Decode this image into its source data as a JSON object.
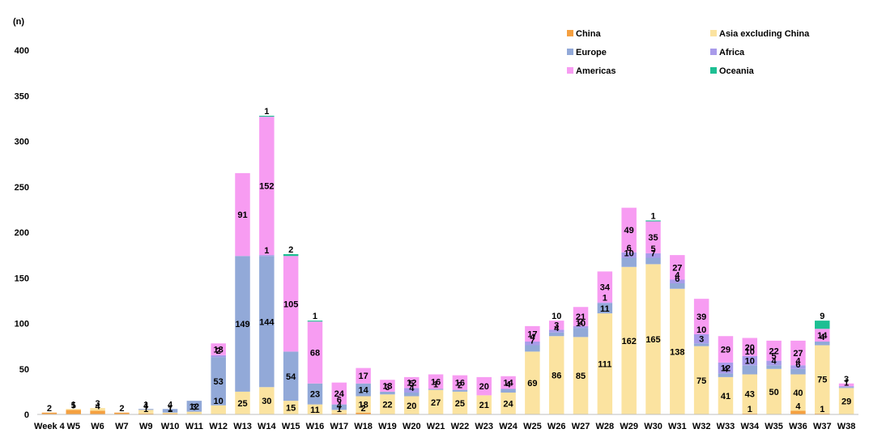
{
  "chart_data": {
    "type": "bar",
    "stacked": true,
    "title": "",
    "xlabel": "",
    "ylabel": "(n)",
    "ylim": [
      0,
      400
    ],
    "yticks": [
      0,
      50,
      100,
      150,
      200,
      250,
      300,
      350,
      400
    ],
    "grid": false,
    "legend_position": "top-right",
    "categories": [
      "Week 4",
      "W5",
      "W6",
      "W7",
      "W9",
      "W10",
      "W11",
      "W12",
      "W13",
      "W14",
      "W15",
      "W16",
      "W17",
      "W18",
      "W19",
      "W20",
      "W21",
      "W22",
      "W23",
      "W24",
      "W25",
      "W26",
      "W27",
      "W28",
      "W29",
      "W30",
      "W31",
      "W32",
      "W33",
      "W34",
      "W35",
      "W36",
      "W37",
      "W38"
    ],
    "series": [
      {
        "name": "China",
        "color": "#F5A040",
        "values": [
          2,
          5,
          4,
          2,
          1,
          1,
          0,
          0,
          0,
          0,
          0,
          0,
          1,
          2,
          0,
          0,
          0,
          0,
          0,
          0,
          0,
          0,
          0,
          0,
          0,
          0,
          0,
          0,
          0,
          1,
          0,
          4,
          1,
          0
        ]
      },
      {
        "name": "Asia excluding China",
        "color": "#FBE3A0",
        "values": [
          0,
          1,
          3,
          0,
          4,
          1,
          3,
          10,
          25,
          30,
          15,
          11,
          4,
          18,
          22,
          20,
          27,
          25,
          21,
          24,
          69,
          86,
          85,
          111,
          162,
          165,
          138,
          75,
          41,
          43,
          50,
          40,
          75,
          29
        ]
      },
      {
        "name": "Europe",
        "color": "#92A9D8",
        "values": [
          0,
          0,
          0,
          0,
          1,
          4,
          12,
          53,
          149,
          144,
          54,
          23,
          6,
          14,
          3,
          4,
          1,
          2,
          0,
          4,
          7,
          4,
          10,
          11,
          10,
          7,
          6,
          3,
          4,
          10,
          4,
          6,
          4,
          1
        ]
      },
      {
        "name": "Africa",
        "color": "#A99BEA",
        "values": [
          0,
          0,
          0,
          0,
          0,
          0,
          0,
          2,
          0,
          1,
          0,
          0,
          0,
          0,
          0,
          5,
          0,
          0,
          0,
          0,
          4,
          3,
          2,
          1,
          6,
          5,
          4,
          10,
          12,
          10,
          5,
          4,
          0,
          1
        ]
      },
      {
        "name": "Americas",
        "color": "#F79CF2",
        "values": [
          0,
          0,
          0,
          0,
          0,
          0,
          0,
          13,
          91,
          152,
          105,
          68,
          24,
          17,
          13,
          12,
          16,
          16,
          20,
          14,
          17,
          10,
          21,
          34,
          49,
          35,
          27,
          39,
          29,
          20,
          22,
          27,
          14,
          3
        ]
      },
      {
        "name": "Oceania",
        "color": "#1DBF93",
        "values": [
          0,
          0,
          0,
          0,
          0,
          0,
          0,
          0,
          0,
          1,
          2,
          1,
          0,
          0,
          0,
          0,
          0,
          0,
          0,
          0,
          0,
          0,
          0,
          0,
          0,
          1,
          0,
          0,
          0,
          0,
          0,
          0,
          9,
          0
        ]
      }
    ],
    "data_labels": [
      {
        "category": "Week 4",
        "series": "China",
        "text": "2"
      },
      {
        "category": "W5",
        "series": "China",
        "text": "5"
      },
      {
        "category": "W5",
        "series": "Asia excluding China",
        "text": "1"
      },
      {
        "category": "W6",
        "series": "China",
        "text": "4"
      },
      {
        "category": "W6",
        "series": "Asia excluding China",
        "text": "3"
      },
      {
        "category": "W7",
        "series": "China",
        "text": "2"
      },
      {
        "category": "W9",
        "series": "China",
        "text": "1"
      },
      {
        "category": "W9",
        "series": "Asia excluding China",
        "text": "4"
      },
      {
        "category": "W9",
        "series": "Europe",
        "text": "1"
      },
      {
        "category": "W10",
        "series": "China",
        "text": "1"
      },
      {
        "category": "W10",
        "series": "Asia excluding China",
        "text": "1"
      },
      {
        "category": "W10",
        "series": "Europe",
        "text": "4"
      },
      {
        "category": "W11",
        "series": "Asia excluding China",
        "text": "3"
      },
      {
        "category": "W11",
        "series": "Europe",
        "text": "12"
      },
      {
        "category": "W12",
        "series": "Asia excluding China",
        "text": "10"
      },
      {
        "category": "W12",
        "series": "Europe",
        "text": "53"
      },
      {
        "category": "W12",
        "series": "Africa",
        "text": "2"
      },
      {
        "category": "W12",
        "series": "Americas",
        "text": "13"
      },
      {
        "category": "W13",
        "series": "Asia excluding China",
        "text": "25"
      },
      {
        "category": "W13",
        "series": "Europe",
        "text": "149"
      },
      {
        "category": "W13",
        "series": "Americas",
        "text": "91"
      },
      {
        "category": "W14",
        "series": "Asia excluding China",
        "text": "30"
      },
      {
        "category": "W14",
        "series": "Europe",
        "text": "144"
      },
      {
        "category": "W14",
        "series": "Africa",
        "text": "1"
      },
      {
        "category": "W14",
        "series": "Americas",
        "text": "152"
      },
      {
        "category": "W14",
        "series": "Oceania",
        "text": "1"
      },
      {
        "category": "W15",
        "series": "Asia excluding China",
        "text": "15"
      },
      {
        "category": "W15",
        "series": "Europe",
        "text": "54"
      },
      {
        "category": "W15",
        "series": "Americas",
        "text": "105"
      },
      {
        "category": "W15",
        "series": "Oceania",
        "text": "2"
      },
      {
        "category": "W16",
        "series": "Asia excluding China",
        "text": "11"
      },
      {
        "category": "W16",
        "series": "Europe",
        "text": "23"
      },
      {
        "category": "W16",
        "series": "Americas",
        "text": "68"
      },
      {
        "category": "W16",
        "series": "Oceania",
        "text": "1"
      },
      {
        "category": "W17",
        "series": "China",
        "text": "1"
      },
      {
        "category": "W17",
        "series": "Asia excluding China",
        "text": "4"
      },
      {
        "category": "W17",
        "series": "Europe",
        "text": "6"
      },
      {
        "category": "W17",
        "series": "Americas",
        "text": "24"
      },
      {
        "category": "W18",
        "series": "China",
        "text": "2"
      },
      {
        "category": "W18",
        "series": "Asia excluding China",
        "text": "18"
      },
      {
        "category": "W18",
        "series": "Europe",
        "text": "14"
      },
      {
        "category": "W18",
        "series": "Americas",
        "text": "17"
      },
      {
        "category": "W19",
        "series": "Asia excluding China",
        "text": "22"
      },
      {
        "category": "W19",
        "series": "Europe",
        "text": "3"
      },
      {
        "category": "W19",
        "series": "Americas",
        "text": "13"
      },
      {
        "category": "W20",
        "series": "Asia excluding China",
        "text": "20"
      },
      {
        "category": "W20",
        "series": "Europe",
        "text": "4"
      },
      {
        "category": "W20",
        "series": "Africa",
        "text": "5"
      },
      {
        "category": "W20",
        "series": "Americas",
        "text": "12"
      },
      {
        "category": "W21",
        "series": "Asia excluding China",
        "text": "27"
      },
      {
        "category": "W21",
        "series": "Europe",
        "text": "1"
      },
      {
        "category": "W21",
        "series": "Americas",
        "text": "16"
      },
      {
        "category": "W22",
        "series": "Asia excluding China",
        "text": "25"
      },
      {
        "category": "W22",
        "series": "Europe",
        "text": "2"
      },
      {
        "category": "W22",
        "series": "Americas",
        "text": "16"
      },
      {
        "category": "W23",
        "series": "Asia excluding China",
        "text": "21"
      },
      {
        "category": "W23",
        "series": "Americas",
        "text": "20"
      },
      {
        "category": "W24",
        "series": "Asia excluding China",
        "text": "24"
      },
      {
        "category": "W24",
        "series": "Europe",
        "text": "4"
      },
      {
        "category": "W24",
        "series": "Americas",
        "text": "14"
      },
      {
        "category": "W25",
        "series": "Asia excluding China",
        "text": "69"
      },
      {
        "category": "W25",
        "series": "Europe",
        "text": "7"
      },
      {
        "category": "W25",
        "series": "Africa",
        "text": "4"
      },
      {
        "category": "W25",
        "series": "Americas",
        "text": "17"
      },
      {
        "category": "W26",
        "series": "Asia excluding China",
        "text": "86"
      },
      {
        "category": "W26",
        "series": "Europe",
        "text": "4"
      },
      {
        "category": "W26",
        "series": "Africa",
        "text": "3"
      },
      {
        "category": "W26",
        "series": "Americas",
        "text": "10"
      },
      {
        "category": "W27",
        "series": "Asia excluding China",
        "text": "85"
      },
      {
        "category": "W27",
        "series": "Europe",
        "text": "10"
      },
      {
        "category": "W27",
        "series": "Africa",
        "text": "2"
      },
      {
        "category": "W27",
        "series": "Americas",
        "text": "21"
      },
      {
        "category": "W28",
        "series": "Asia excluding China",
        "text": "111"
      },
      {
        "category": "W28",
        "series": "Europe",
        "text": "11"
      },
      {
        "category": "W28",
        "series": "Africa",
        "text": "1"
      },
      {
        "category": "W28",
        "series": "Americas",
        "text": "34"
      },
      {
        "category": "W29",
        "series": "Asia excluding China",
        "text": "162"
      },
      {
        "category": "W29",
        "series": "Europe",
        "text": "10"
      },
      {
        "category": "W29",
        "series": "Africa",
        "text": "6"
      },
      {
        "category": "W29",
        "series": "Americas",
        "text": "49"
      },
      {
        "category": "W30",
        "series": "Asia excluding China",
        "text": "165"
      },
      {
        "category": "W30",
        "series": "Europe",
        "text": "7"
      },
      {
        "category": "W30",
        "series": "Africa",
        "text": "5"
      },
      {
        "category": "W30",
        "series": "Americas",
        "text": "35"
      },
      {
        "category": "W30",
        "series": "Oceania",
        "text": "1"
      },
      {
        "category": "W31",
        "series": "Asia excluding China",
        "text": "138"
      },
      {
        "category": "W31",
        "series": "Europe",
        "text": "6"
      },
      {
        "category": "W31",
        "series": "Africa",
        "text": "4"
      },
      {
        "category": "W31",
        "series": "Americas",
        "text": "27"
      },
      {
        "category": "W32",
        "series": "Asia excluding China",
        "text": "75"
      },
      {
        "category": "W32",
        "series": "Europe",
        "text": "3"
      },
      {
        "category": "W32",
        "series": "Africa",
        "text": "10"
      },
      {
        "category": "W32",
        "series": "Americas",
        "text": "39"
      },
      {
        "category": "W33",
        "series": "Asia excluding China",
        "text": "41"
      },
      {
        "category": "W33",
        "series": "Europe",
        "text": "4"
      },
      {
        "category": "W33",
        "series": "Africa",
        "text": "12"
      },
      {
        "category": "W33",
        "series": "Americas",
        "text": "29"
      },
      {
        "category": "W34",
        "series": "China",
        "text": "1"
      },
      {
        "category": "W34",
        "series": "Asia excluding China",
        "text": "43"
      },
      {
        "category": "W34",
        "series": "Europe",
        "text": "10"
      },
      {
        "category": "W34",
        "series": "Africa",
        "text": "10"
      },
      {
        "category": "W34",
        "series": "Americas",
        "text": "20"
      },
      {
        "category": "W35",
        "series": "Asia excluding China",
        "text": "50"
      },
      {
        "category": "W35",
        "series": "Europe",
        "text": "4"
      },
      {
        "category": "W35",
        "series": "Africa",
        "text": "5"
      },
      {
        "category": "W35",
        "series": "Americas",
        "text": "22"
      },
      {
        "category": "W36",
        "series": "China",
        "text": "4"
      },
      {
        "category": "W36",
        "series": "Asia excluding China",
        "text": "40"
      },
      {
        "category": "W36",
        "series": "Europe",
        "text": "6"
      },
      {
        "category": "W36",
        "series": "Africa",
        "text": "4"
      },
      {
        "category": "W36",
        "series": "Americas",
        "text": "27"
      },
      {
        "category": "W37",
        "series": "China",
        "text": "1"
      },
      {
        "category": "W37",
        "series": "Asia excluding China",
        "text": "75"
      },
      {
        "category": "W37",
        "series": "Europe",
        "text": "4"
      },
      {
        "category": "W37",
        "series": "Americas",
        "text": "14"
      },
      {
        "category": "W37",
        "series": "Oceania",
        "text": "9"
      },
      {
        "category": "W38",
        "series": "Asia excluding China",
        "text": "29"
      },
      {
        "category": "W38",
        "series": "Europe",
        "text": "1"
      },
      {
        "category": "W38",
        "series": "Americas",
        "text": "3"
      }
    ]
  }
}
